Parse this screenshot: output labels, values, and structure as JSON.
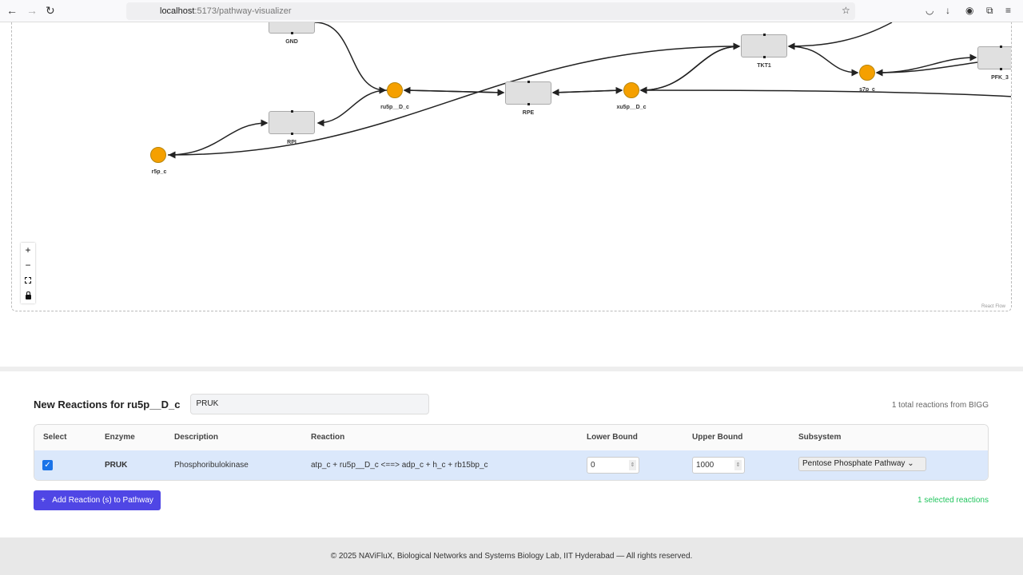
{
  "browser": {
    "url_host": "localhost",
    "url_path": ":5173/pathway-visualizer"
  },
  "graph": {
    "reactions": [
      "GND",
      "RPI",
      "RPE",
      "TKT1",
      "PFK_3"
    ],
    "metabolites": [
      "ru5p__D_c",
      "r5p_c",
      "xu5p__D_c",
      "s7p_c"
    ],
    "attribution": "React Flow",
    "colors": {
      "metabolite": "#f5a000",
      "reaction": "#e0e0e0"
    }
  },
  "panel": {
    "title": "New Reactions for ru5p__D_c",
    "search_value": "PRUK",
    "total": "1 total reactions from BIGG",
    "columns": [
      "Select",
      "Enzyme",
      "Description",
      "Reaction",
      "Lower Bound",
      "Upper Bound",
      "Subsystem"
    ],
    "rows": [
      {
        "selected": true,
        "enzyme": "PRUK",
        "description": "Phosphoribulokinase",
        "reaction": "atp_c + ru5p__D_c <==> adp_c + h_c + rb15bp_c",
        "lower": "0",
        "upper": "1000",
        "subsystem": "Pentose Phosphate Pathway"
      }
    ],
    "add_button": "Add Reaction (s) to Pathway",
    "selected_count": "1 selected reactions",
    "accent": "#4f46e5"
  },
  "footer": "© 2025 NAViFluX, Biological Networks and Systems Biology Lab, IIT Hyderabad — All rights reserved."
}
